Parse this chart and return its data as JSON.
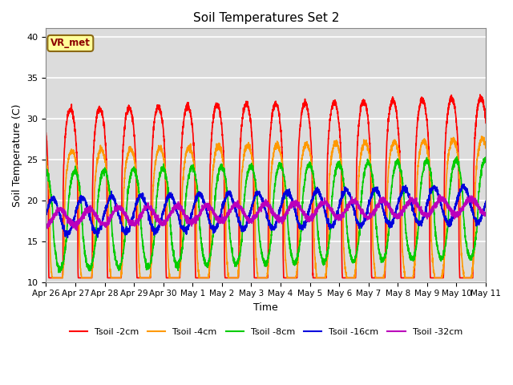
{
  "title": "Soil Temperatures Set 2",
  "xlabel": "Time",
  "ylabel": "Soil Temperature (C)",
  "ylim": [
    10,
    41
  ],
  "yticks": [
    10,
    15,
    20,
    25,
    30,
    35,
    40
  ],
  "background_color": "#dcdcdc",
  "series_names": [
    "Tsoil -2cm",
    "Tsoil -4cm",
    "Tsoil -8cm",
    "Tsoil -16cm",
    "Tsoil -32cm"
  ],
  "series_colors": [
    "#ff0000",
    "#ff9900",
    "#00cc00",
    "#0000dd",
    "#bb00bb"
  ],
  "annotation": "VR_met",
  "day_labels": [
    "Apr 26",
    "Apr 27",
    "Apr 28",
    "Apr 29",
    "Apr 30",
    "May 1",
    "May 2",
    "May 3",
    "May 4",
    "May 5",
    "May 6",
    "May 7",
    "May 8",
    "May 9",
    "May 10",
    "May 11"
  ],
  "depths": {
    "Tsoil -2cm": {
      "amp": 14.0,
      "phase_lag": 0.0,
      "base": 17.0,
      "sharpness": 3.0
    },
    "Tsoil -4cm": {
      "amp": 9.0,
      "phase_lag": 0.05,
      "base": 17.0,
      "sharpness": 2.5
    },
    "Tsoil -8cm": {
      "amp": 6.0,
      "phase_lag": 0.15,
      "base": 17.5,
      "sharpness": 1.5
    },
    "Tsoil -16cm": {
      "amp": 2.2,
      "phase_lag": 0.4,
      "base": 18.0,
      "sharpness": 1.0
    },
    "Tsoil -32cm": {
      "amp": 1.0,
      "phase_lag": 0.65,
      "base": 17.8,
      "sharpness": 1.0
    }
  }
}
